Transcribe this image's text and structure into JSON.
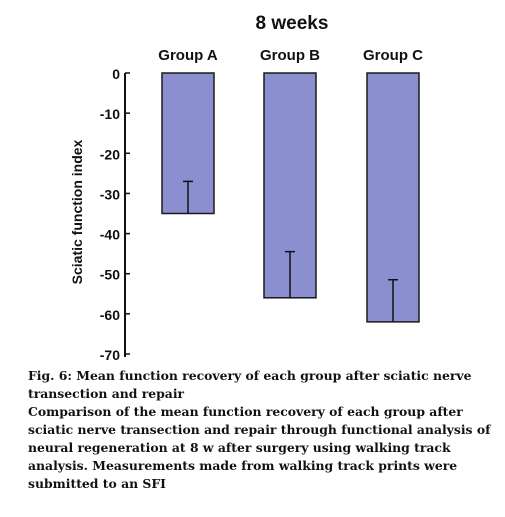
{
  "chart_data": {
    "type": "bar",
    "title": "8 weeks",
    "ylabel": "Sciatic function index",
    "xlabel": "",
    "categories": [
      "Group A",
      "Group B",
      "Group C"
    ],
    "values": [
      -35,
      -56,
      -62
    ],
    "error_top": [
      -27,
      -44.5,
      -51.5
    ],
    "ylim": [
      -70,
      0
    ],
    "yticks": [
      0,
      -10,
      -20,
      -30,
      -40,
      -50,
      -60,
      -70
    ],
    "ytick_labels": [
      "0",
      "-10",
      "-20",
      "-30",
      "-40",
      "-50",
      "-60",
      "-70"
    ],
    "x_axis_position": "top",
    "bar_color": "#8b8fd0",
    "bar_edge_color": "#1a1a1a",
    "grid": false
  },
  "caption": {
    "title": "Fig. 6: Mean function recovery of each group after sciatic nerve transection and repair",
    "body": "Comparison of the mean function recovery of each group after sciatic nerve transection and repair through functional analysis of neural regeneration at 8 w after surgery using walking track analysis. Measurements made from walking track prints were submitted to an SFI"
  }
}
